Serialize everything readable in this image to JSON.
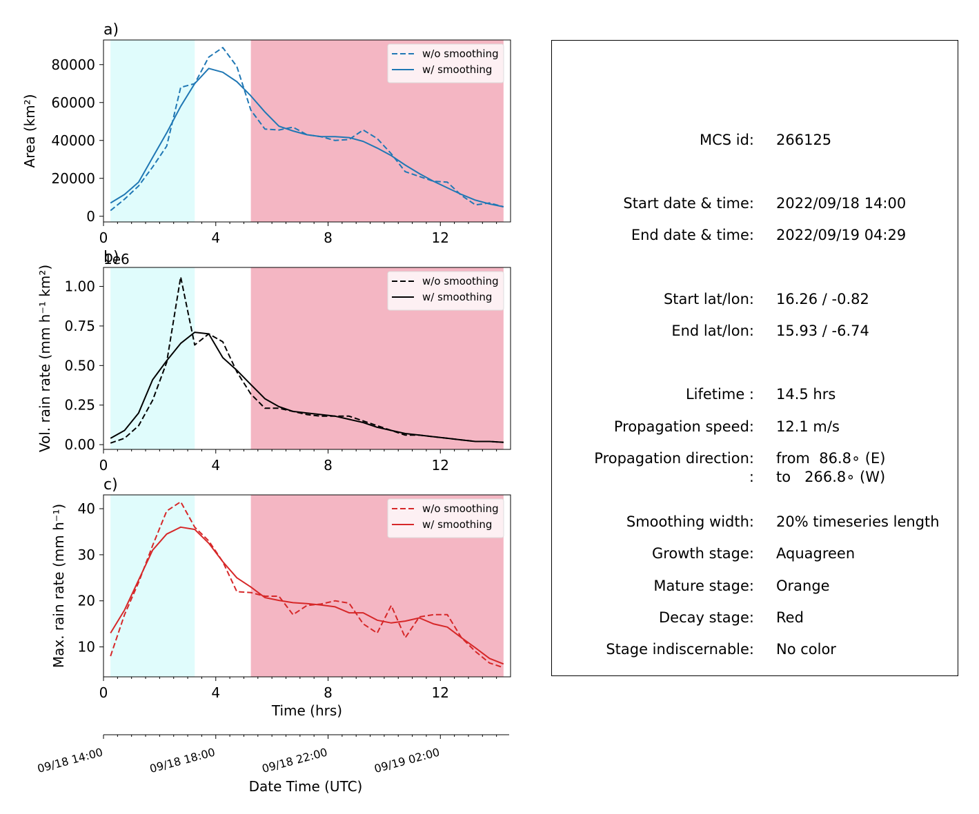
{
  "colors": {
    "growth": "#e0fcfc",
    "decay": "#f4b6c3",
    "area_line": "#1f77b4",
    "rain_line": "#000000",
    "max_line": "#d62728"
  },
  "chart_data": [
    {
      "type": "line",
      "panel_label": "a)",
      "ylabel": "Area  (km²)",
      "xlim": [
        0,
        14.5
      ],
      "ylim": [
        -3000,
        93000
      ],
      "yticks": [
        0,
        20000,
        40000,
        60000,
        80000
      ],
      "ytick_labels": [
        "0",
        "20000",
        "40000",
        "60000",
        "80000"
      ],
      "xticks": [
        0,
        4,
        8,
        12
      ],
      "xtick_labels": [
        "0",
        "4",
        "8",
        "12"
      ],
      "shaded": [
        {
          "stage": "growth",
          "from": 0.25,
          "to": 3.25
        },
        {
          "stage": "decay",
          "from": 5.25,
          "to": 14.25
        }
      ],
      "legend_position": "top-right",
      "series": [
        {
          "name": "w/o smoothing",
          "style": "dashed",
          "x": [
            0.25,
            0.75,
            1.25,
            1.75,
            2.25,
            2.75,
            3.25,
            3.75,
            4.25,
            4.75,
            5.25,
            5.75,
            6.25,
            6.75,
            7.25,
            7.75,
            8.25,
            8.75,
            9.25,
            9.75,
            10.25,
            10.75,
            11.25,
            11.75,
            12.25,
            12.75,
            13.25,
            13.75,
            14.25
          ],
          "y": [
            3000,
            9000,
            16000,
            26000,
            37000,
            68000,
            70000,
            84000,
            89000,
            79000,
            56000,
            46000,
            45500,
            47000,
            43000,
            42000,
            40000,
            40500,
            45500,
            41000,
            33000,
            23500,
            21000,
            18500,
            18000,
            11000,
            6000,
            7000,
            5000
          ]
        },
        {
          "name": "w/ smoothing",
          "style": "solid",
          "x": [
            0.25,
            0.75,
            1.25,
            1.75,
            2.25,
            2.75,
            3.25,
            3.75,
            4.25,
            4.75,
            5.25,
            5.75,
            6.25,
            6.75,
            7.25,
            7.75,
            8.25,
            8.75,
            9.25,
            9.75,
            10.25,
            10.75,
            11.25,
            11.75,
            12.25,
            12.75,
            13.25,
            13.75,
            14.25
          ],
          "y": [
            7000,
            11500,
            18000,
            31000,
            44000,
            58000,
            70000,
            78000,
            76000,
            71000,
            63500,
            55000,
            47500,
            45000,
            43000,
            42000,
            42000,
            41500,
            39500,
            36000,
            32000,
            27000,
            22500,
            18500,
            15000,
            11500,
            8500,
            6500,
            5000
          ]
        }
      ]
    },
    {
      "type": "line",
      "panel_label": "b)",
      "ylabel": "Vol. rain rate (mm h⁻¹ km²)",
      "offset_label": "1e6",
      "xlim": [
        0,
        14.5
      ],
      "ylim": [
        -0.03,
        1.12
      ],
      "yticks": [
        0.0,
        0.25,
        0.5,
        0.75,
        1.0
      ],
      "ytick_labels": [
        "0.00",
        "0.25",
        "0.50",
        "0.75",
        "1.00"
      ],
      "xticks": [
        0,
        4,
        8,
        12
      ],
      "xtick_labels": [
        "0",
        "4",
        "8",
        "12"
      ],
      "shaded": [
        {
          "stage": "growth",
          "from": 0.25,
          "to": 3.25
        },
        {
          "stage": "decay",
          "from": 5.25,
          "to": 14.25
        }
      ],
      "legend_position": "top-right",
      "series": [
        {
          "name": "w/o smoothing",
          "style": "dashed",
          "x": [
            0.25,
            0.75,
            1.25,
            1.75,
            2.25,
            2.75,
            3.25,
            3.75,
            4.25,
            4.75,
            5.25,
            5.75,
            6.25,
            6.75,
            7.25,
            7.75,
            8.25,
            8.75,
            9.25,
            9.75,
            10.25,
            10.75,
            11.25,
            11.75,
            12.25,
            12.75,
            13.25,
            13.75,
            14.25
          ],
          "y": [
            0.01,
            0.04,
            0.12,
            0.28,
            0.52,
            1.06,
            0.63,
            0.7,
            0.65,
            0.46,
            0.32,
            0.23,
            0.23,
            0.21,
            0.19,
            0.18,
            0.18,
            0.18,
            0.15,
            0.12,
            0.09,
            0.06,
            0.06,
            0.05,
            0.04,
            0.03,
            0.02,
            0.02,
            0.015
          ]
        },
        {
          "name": "w/ smoothing",
          "style": "solid",
          "x": [
            0.25,
            0.75,
            1.25,
            1.75,
            2.25,
            2.75,
            3.25,
            3.75,
            4.25,
            4.75,
            5.25,
            5.75,
            6.25,
            6.75,
            7.25,
            7.75,
            8.25,
            8.75,
            9.25,
            9.75,
            10.25,
            10.75,
            11.25,
            11.75,
            12.25,
            12.75,
            13.25,
            13.75,
            14.25
          ],
          "y": [
            0.04,
            0.09,
            0.2,
            0.41,
            0.53,
            0.64,
            0.71,
            0.7,
            0.55,
            0.47,
            0.38,
            0.29,
            0.24,
            0.21,
            0.2,
            0.19,
            0.18,
            0.16,
            0.14,
            0.11,
            0.09,
            0.07,
            0.06,
            0.05,
            0.04,
            0.03,
            0.02,
            0.02,
            0.015
          ]
        }
      ]
    },
    {
      "type": "line",
      "panel_label": "c)",
      "ylabel": "Max. rain rate  (mm h⁻¹)",
      "xlabel": "Time (hrs)",
      "xlim": [
        0,
        14.5
      ],
      "ylim": [
        3.5,
        43
      ],
      "yticks": [
        10,
        20,
        30,
        40
      ],
      "ytick_labels": [
        "10",
        "20",
        "30",
        "40"
      ],
      "xticks": [
        0,
        4,
        8,
        12
      ],
      "xtick_labels": [
        "0",
        "4",
        "8",
        "12"
      ],
      "shaded": [
        {
          "stage": "growth",
          "from": 0.25,
          "to": 3.25
        },
        {
          "stage": "decay",
          "from": 5.25,
          "to": 14.25
        }
      ],
      "legend_position": "top-right",
      "series": [
        {
          "name": "w/o smoothing",
          "style": "dashed",
          "x": [
            0.25,
            0.75,
            1.25,
            1.75,
            2.25,
            2.75,
            3.25,
            3.75,
            4.25,
            4.75,
            5.25,
            5.75,
            6.25,
            6.75,
            7.25,
            7.75,
            8.25,
            8.75,
            9.25,
            9.75,
            10.25,
            10.75,
            11.25,
            11.75,
            12.25,
            12.75,
            13.25,
            13.75,
            14.25
          ],
          "y": [
            8,
            17,
            24,
            32,
            39.5,
            41.5,
            36,
            33,
            28.5,
            22,
            21.8,
            21,
            21,
            17,
            19,
            19.3,
            20,
            19.5,
            15,
            13,
            19,
            12,
            16.5,
            17,
            17,
            12,
            9,
            6.5,
            5.5
          ]
        },
        {
          "name": "w/ smoothing",
          "style": "solid",
          "x": [
            0.25,
            0.75,
            1.25,
            1.75,
            2.25,
            2.75,
            3.25,
            3.75,
            4.25,
            4.75,
            5.25,
            5.75,
            6.25,
            6.75,
            7.25,
            7.75,
            8.25,
            8.75,
            9.25,
            9.75,
            10.25,
            10.75,
            11.25,
            11.75,
            12.25,
            12.75,
            13.25,
            13.75,
            14.25
          ],
          "y": [
            13,
            18,
            24.5,
            31,
            34.5,
            36,
            35.5,
            32.5,
            28.5,
            25,
            23,
            20.7,
            20.1,
            19.6,
            19.4,
            19.1,
            18.7,
            17.4,
            17.4,
            15.8,
            15.2,
            15.6,
            16.3,
            15,
            14.3,
            12,
            9.8,
            7.5,
            6.3
          ]
        }
      ]
    }
  ],
  "time_axis": {
    "xlabel": "Date Time (UTC)",
    "ticks": [
      0,
      4,
      8,
      12
    ],
    "tick_labels": [
      "09/18 14:00",
      "09/18 18:00",
      "09/18 22:00",
      "09/19 02:00"
    ]
  },
  "info": {
    "mcs_id": {
      "label": "MCS id:",
      "value": "266125"
    },
    "start_time": {
      "label": "Start date & time:",
      "value": "2022/09/18 14:00"
    },
    "end_time": {
      "label": "End date & time:",
      "value": "2022/09/19 04:29"
    },
    "start_latlon": {
      "label": "Start lat/lon:",
      "value": "16.26 / -0.82"
    },
    "end_latlon": {
      "label": "End lat/lon:",
      "value": "15.93 / -6.74"
    },
    "lifetime": {
      "label": "Lifetime :",
      "value": "14.5 hrs"
    },
    "speed": {
      "label": "Propagation speed:",
      "value": "12.1 m/s"
    },
    "direction_from": {
      "label": "Propagation direction:",
      "value": "from  86.8∘ (E)"
    },
    "direction_to": {
      "label": ":",
      "value": "to   266.8∘ (W)"
    },
    "smoothing": {
      "label": "Smoothing width:",
      "value": "20% timeseries length"
    },
    "growth": {
      "label": "Growth stage:",
      "value": "Aquagreen"
    },
    "mature": {
      "label": "Mature stage:",
      "value": "Orange"
    },
    "decay": {
      "label": "Decay stage:",
      "value": "Red"
    },
    "indiscernable": {
      "label": "Stage indiscernable:",
      "value": "No color"
    }
  }
}
